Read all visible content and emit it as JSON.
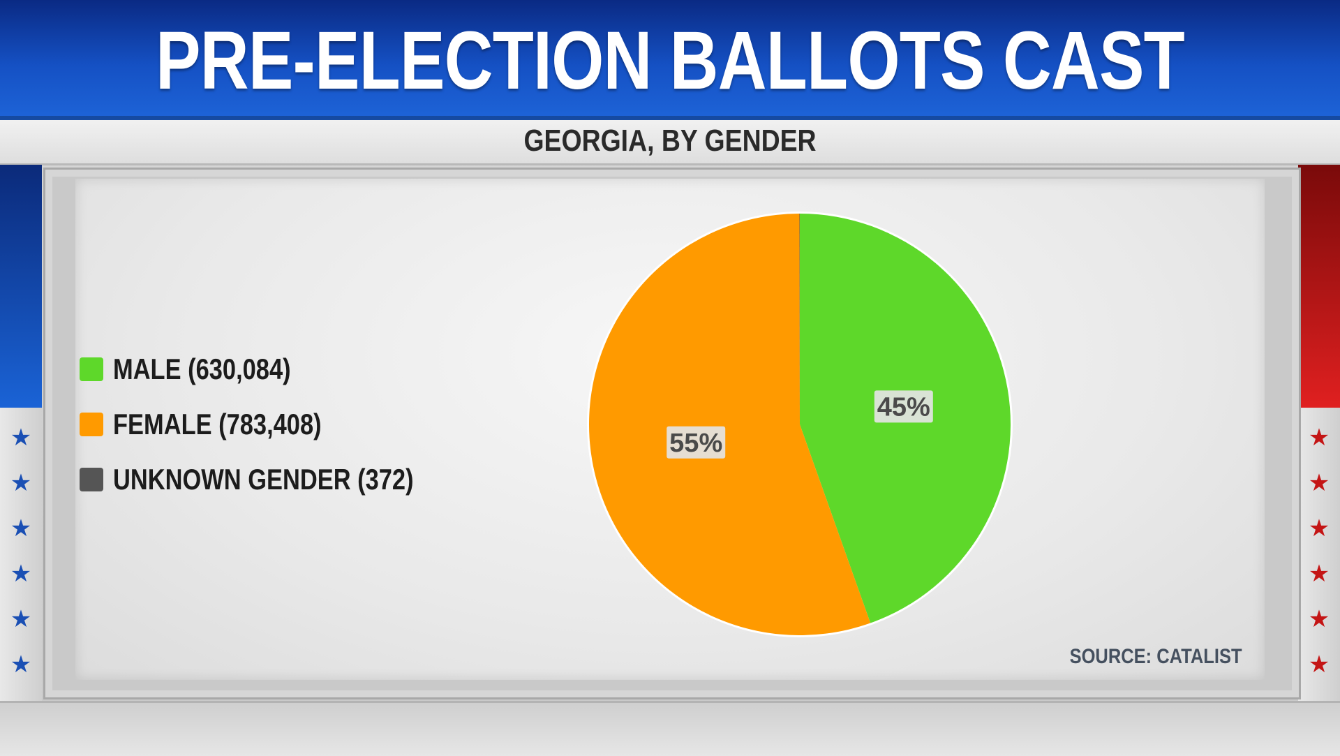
{
  "header": {
    "title": "PRE-ELECTION BALLOTS CAST",
    "subtitle": "GEORGIA, BY GENDER"
  },
  "chart_data": {
    "type": "pie",
    "title": "PRE-ELECTION BALLOTS CAST",
    "subtitle": "GEORGIA, BY GENDER",
    "slices": [
      {
        "label": "MALE (630,084)",
        "value": 630084,
        "percent_label": "45%",
        "color": "#5ed82a"
      },
      {
        "label": "FEMALE (783,408)",
        "value": 783408,
        "percent_label": "55%",
        "color": "#ff9a00"
      },
      {
        "label": "UNKNOWN GENDER (372)",
        "value": 372,
        "percent_label": "",
        "color": "#555555"
      }
    ],
    "legend_position": "left",
    "start": "top",
    "direction": "clockwise"
  },
  "source": "SOURCE: CATALIST",
  "colors": {
    "header_blue": "#1551c4",
    "accent_red": "#e02020",
    "male_green": "#5ed82a",
    "female_orange": "#ff9a00",
    "unknown_gray": "#555555"
  }
}
